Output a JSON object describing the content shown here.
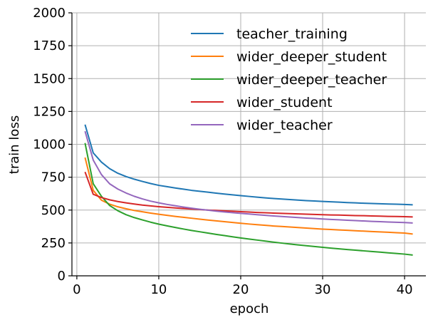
{
  "chart_data": {
    "type": "line",
    "title": "",
    "xlabel": "epoch",
    "ylabel": "train loss",
    "xlim": [
      -0.6,
      42.6
    ],
    "ylim": [
      0,
      2000
    ],
    "xticks": [
      0,
      10,
      20,
      30,
      40
    ],
    "yticks": [
      0,
      250,
      500,
      750,
      1000,
      1250,
      1500,
      1750,
      2000
    ],
    "xtick_labels": [
      "0",
      "10",
      "20",
      "30",
      "40"
    ],
    "ytick_labels": [
      "0",
      "250",
      "500",
      "750",
      "1000",
      "1250",
      "1500",
      "1750",
      "2000"
    ],
    "grid": true,
    "legend": "top-right",
    "x": [
      1,
      2,
      3,
      4,
      5,
      6,
      7,
      8,
      9,
      10,
      11,
      12,
      13,
      14,
      15,
      16,
      17,
      18,
      19,
      20,
      21,
      22,
      23,
      24,
      25,
      26,
      27,
      28,
      29,
      30,
      31,
      32,
      33,
      34,
      35,
      36,
      37,
      38,
      39,
      40,
      41
    ],
    "series": [
      {
        "name": "teacher_training",
        "color": "#1f77b4",
        "values": [
          1150,
          935,
          865,
          815,
          780,
          755,
          735,
          718,
          702,
          688,
          678,
          668,
          659,
          650,
          643,
          636,
          629,
          622,
          616,
          610,
          604,
          598,
          593,
          588,
          584,
          580,
          576,
          572,
          569,
          566,
          563,
          560,
          557,
          555,
          552,
          550,
          548,
          546,
          545,
          543,
          540
        ]
      },
      {
        "name": "wider_deeper_student",
        "color": "#ff7f0e",
        "values": [
          900,
          650,
          575,
          545,
          525,
          510,
          497,
          487,
          477,
          468,
          460,
          452,
          445,
          438,
          431,
          424,
          418,
          412,
          406,
          400,
          394,
          389,
          384,
          379,
          375,
          371,
          367,
          363,
          359,
          355,
          352,
          349,
          346,
          343,
          340,
          337,
          334,
          331,
          328,
          325,
          318
        ]
      },
      {
        "name": "wider_deeper_teacher",
        "color": "#2ca02c",
        "values": [
          1010,
          700,
          605,
          535,
          495,
          465,
          443,
          425,
          408,
          393,
          380,
          368,
          356,
          345,
          335,
          325,
          315,
          306,
          297,
          288,
          280,
          272,
          264,
          256,
          249,
          242,
          235,
          229,
          223,
          217,
          211,
          205,
          200,
          195,
          190,
          185,
          180,
          175,
          170,
          165,
          158
        ]
      },
      {
        "name": "wider_student",
        "color": "#d62728",
        "values": [
          790,
          620,
          595,
          578,
          565,
          555,
          546,
          538,
          532,
          526,
          521,
          516,
          512,
          508,
          504,
          500,
          497,
          494,
          491,
          488,
          485,
          482,
          480,
          477,
          475,
          473,
          471,
          469,
          467,
          465,
          463,
          462,
          460,
          458,
          457,
          455,
          454,
          452,
          451,
          450,
          448
        ]
      },
      {
        "name": "wider_teacher",
        "color": "#9467bd",
        "values": [
          1100,
          880,
          770,
          700,
          660,
          630,
          605,
          585,
          568,
          555,
          543,
          533,
          523,
          514,
          506,
          499,
          492,
          486,
          480,
          475,
          470,
          465,
          460,
          455,
          451,
          447,
          443,
          439,
          436,
          432,
          429,
          426,
          423,
          420,
          417,
          414,
          412,
          409,
          407,
          405,
          402
        ]
      }
    ]
  }
}
